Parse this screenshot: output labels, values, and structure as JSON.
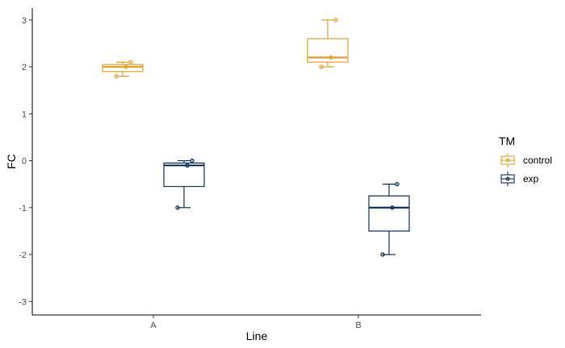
{
  "chart_data": {
    "type": "box",
    "xlabel": "Line",
    "ylabel": "FC",
    "ylim": [
      -3.3,
      3.3
    ],
    "y_ticks": [
      -3,
      -2,
      -1,
      0,
      1,
      2,
      3
    ],
    "categories": [
      "A",
      "B"
    ],
    "grid": false,
    "legend": {
      "title": "TM",
      "placement": "right",
      "entries": [
        "control",
        "exp"
      ]
    },
    "series": [
      {
        "name": "control",
        "color": "#E69F28",
        "boxes": [
          {
            "category": "A",
            "whisker_low": 1.8,
            "q1": 1.9,
            "median": 2.0,
            "q3": 2.05,
            "whisker_high": 2.1,
            "points": [
              1.8,
              2.0,
              2.1
            ]
          },
          {
            "category": "B",
            "whisker_low": 2.0,
            "q1": 2.1,
            "median": 2.2,
            "q3": 2.6,
            "whisker_high": 3.0,
            "points": [
              2.0,
              2.2,
              3.0
            ]
          }
        ]
      },
      {
        "name": "exp",
        "color": "#0D3362",
        "boxes": [
          {
            "category": "A",
            "whisker_low": -1.0,
            "q1": -0.55,
            "median": -0.1,
            "q3": -0.05,
            "whisker_high": 0.0,
            "points": [
              -1.0,
              -0.1,
              0.0
            ]
          },
          {
            "category": "B",
            "whisker_low": -2.0,
            "q1": -1.5,
            "median": -1.0,
            "q3": -0.75,
            "whisker_high": -0.5,
            "points": [
              -2.0,
              -1.0,
              -0.5
            ]
          }
        ]
      }
    ]
  }
}
